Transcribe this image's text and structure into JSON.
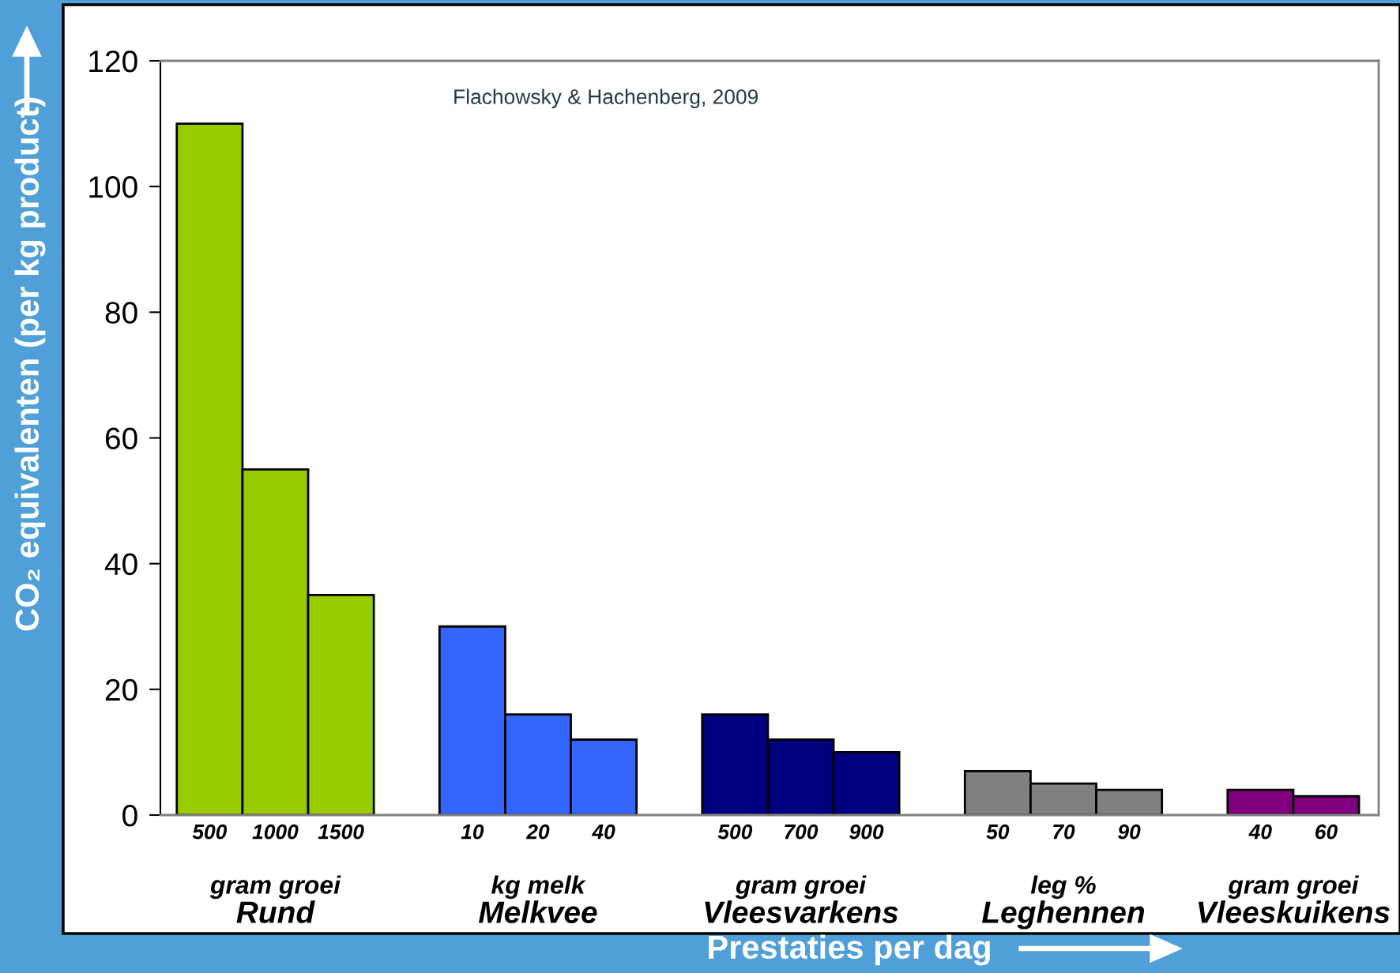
{
  "chart_data": {
    "type": "bar",
    "ylabel": "CO₂ equivalenten (per kg product)",
    "xlabel": "Prestaties per dag",
    "categories": [
      "500",
      "1000",
      "1500",
      null,
      "10",
      "20",
      "40",
      null,
      "500",
      "700",
      "900",
      null,
      "50",
      "70",
      "90",
      null,
      "40",
      "60"
    ],
    "values": [
      110,
      55,
      35,
      null,
      30,
      16,
      12,
      null,
      16,
      12,
      10,
      null,
      7,
      5,
      4,
      null,
      4,
      3
    ],
    "colors": [
      "#99cc00",
      "#99cc00",
      "#99cc00",
      null,
      "#3366ff",
      "#3366ff",
      "#3366ff",
      null,
      "#000080",
      "#000080",
      "#000080",
      null,
      "#808080",
      "#808080",
      "#808080",
      null,
      "#800080",
      "#800080"
    ],
    "ylim": [
      0,
      120
    ],
    "yticks": [
      0,
      20,
      40,
      60,
      80,
      100,
      120
    ],
    "grid": false,
    "legend": false,
    "annotations": [
      "Flachowsky & Hachenberg, 2009",
      "gram groei",
      "Rund",
      "kg melk",
      "Melkvee",
      "gram groei",
      "Vleesvarkens",
      "leg %",
      "Leghennen",
      "gram groei",
      "Vleeskuikens"
    ]
  }
}
